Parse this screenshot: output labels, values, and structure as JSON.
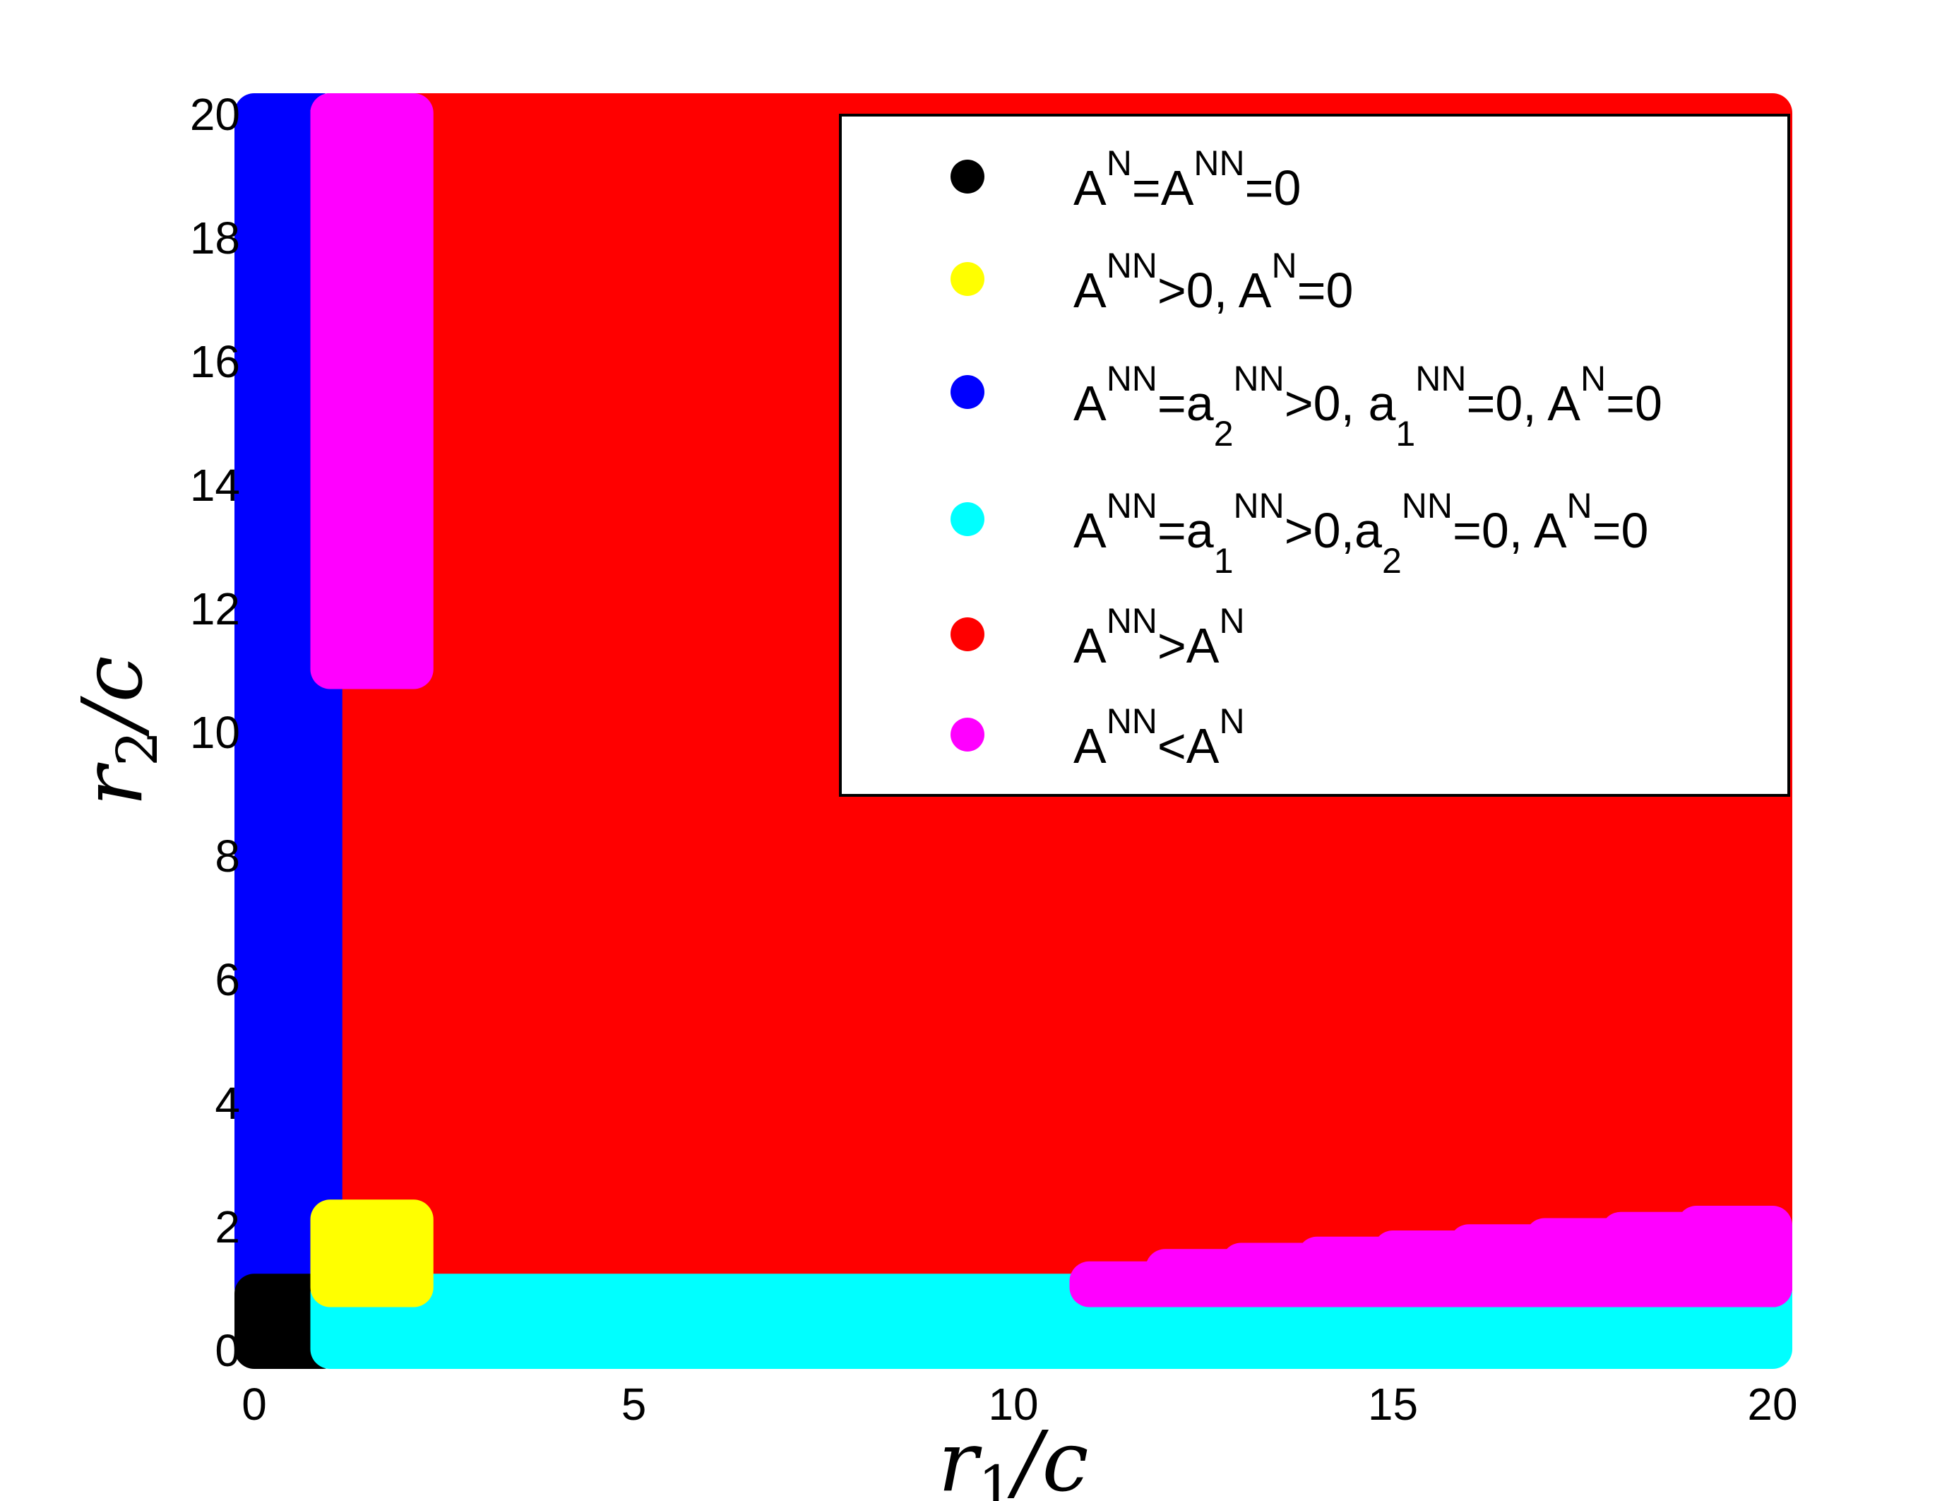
{
  "chart_data": {
    "type": "scatter",
    "xlabel": {
      "var": "r",
      "sub": "1",
      "tail": "/c"
    },
    "ylabel": {
      "var": "r",
      "sub": "2",
      "tail": "/c"
    },
    "xlim": [
      0,
      20
    ],
    "ylim": [
      0,
      20
    ],
    "xticks": [
      "0",
      "5",
      "10",
      "15",
      "20"
    ],
    "yticks": [
      "0",
      "2",
      "4",
      "6",
      "8",
      "10",
      "12",
      "14",
      "16",
      "18",
      "20"
    ],
    "grid": false,
    "legend_position": "top-right",
    "series": [
      {
        "key": "s1",
        "color": "#000000",
        "legend": [
          [
            "A"
          ],
          [
            "N",
            "sup"
          ],
          [
            "=A"
          ],
          [
            "NN",
            "sup"
          ],
          [
            "=0"
          ]
        ],
        "regions": [
          {
            "x": [
              0,
              0.9
            ],
            "y": [
              0,
              0.9
            ]
          }
        ]
      },
      {
        "key": "s2",
        "color": "#ffff00",
        "legend": [
          [
            "A"
          ],
          [
            "NN",
            "sup"
          ],
          [
            ">0, A"
          ],
          [
            "N",
            "sup"
          ],
          [
            "=0"
          ]
        ],
        "regions": [
          {
            "x": [
              1.0,
              2.1
            ],
            "y": [
              1.0,
              2.1
            ]
          }
        ]
      },
      {
        "key": "s3",
        "color": "#0000ff",
        "legend": [
          [
            "A"
          ],
          [
            "NN",
            "sup"
          ],
          [
            "=a"
          ],
          [
            "2",
            "sub"
          ],
          [
            "NN",
            "sup"
          ],
          [
            ">0, a"
          ],
          [
            "1",
            "sub"
          ],
          [
            "NN",
            "sup"
          ],
          [
            "=0, A"
          ],
          [
            "N",
            "sup"
          ],
          [
            "=0"
          ]
        ],
        "regions": [
          {
            "x": [
              0,
              0.9
            ],
            "y": [
              1.0,
              20
            ]
          }
        ]
      },
      {
        "key": "s4",
        "color": "#00ffff",
        "legend": [
          [
            "A"
          ],
          [
            "NN",
            "sup"
          ],
          [
            "=a"
          ],
          [
            "1",
            "sub"
          ],
          [
            "NN",
            "sup"
          ],
          [
            ">0,a"
          ],
          [
            "2",
            "sub"
          ],
          [
            "NN",
            "sup"
          ],
          [
            "=0, A"
          ],
          [
            "N",
            "sup"
          ],
          [
            "=0"
          ]
        ],
        "regions": [
          {
            "x": [
              1.0,
              20
            ],
            "y": [
              0,
              0.9
            ]
          }
        ]
      },
      {
        "key": "s5",
        "color": "#ff0000",
        "legend": [
          [
            " A"
          ],
          [
            "NN",
            "sup"
          ],
          [
            ">A"
          ],
          [
            "N",
            "sup"
          ]
        ],
        "regions": [
          {
            "x": [
              1.0,
              20
            ],
            "y": [
              1.0,
              20
            ]
          }
        ]
      },
      {
        "key": "s6",
        "color": "#ff00ff",
        "legend": [
          [
            "A"
          ],
          [
            "NN",
            "sup"
          ],
          [
            "<A"
          ],
          [
            "N",
            "sup"
          ]
        ],
        "regions": [
          {
            "x": [
              1.0,
              2.1
            ],
            "y": [
              11.0,
              20
            ]
          },
          {
            "x": [
              1.0,
              2.0
            ],
            "y": [
              12.0,
              20
            ]
          },
          {
            "x": [
              1.0,
              1.9
            ],
            "y": [
              13.0,
              20
            ]
          },
          {
            "x": [
              1.0,
              1.8
            ],
            "y": [
              14.0,
              20
            ]
          },
          {
            "x": [
              1.0,
              1.7
            ],
            "y": [
              15.0,
              20
            ]
          },
          {
            "x": [
              1.0,
              1.6
            ],
            "y": [
              16.0,
              20
            ]
          },
          {
            "x": [
              1.0,
              1.5
            ],
            "y": [
              17.0,
              20
            ]
          },
          {
            "x": [
              1.0,
              1.4
            ],
            "y": [
              18.0,
              20
            ]
          },
          {
            "x": [
              1.0,
              1.3
            ],
            "y": [
              19.0,
              20
            ]
          },
          {
            "x": [
              11.0,
              20
            ],
            "y": [
              1.0,
              1.1
            ]
          },
          {
            "x": [
              12.0,
              20
            ],
            "y": [
              1.0,
              1.3
            ]
          },
          {
            "x": [
              13.0,
              20
            ],
            "y": [
              1.0,
              1.4
            ]
          },
          {
            "x": [
              14.0,
              20
            ],
            "y": [
              1.0,
              1.5
            ]
          },
          {
            "x": [
              15.0,
              20
            ],
            "y": [
              1.0,
              1.6
            ]
          },
          {
            "x": [
              16.0,
              20
            ],
            "y": [
              1.0,
              1.7
            ]
          },
          {
            "x": [
              17.0,
              20
            ],
            "y": [
              1.0,
              1.8
            ]
          },
          {
            "x": [
              18.0,
              20
            ],
            "y": [
              1.0,
              1.9
            ]
          },
          {
            "x": [
              19.0,
              20
            ],
            "y": [
              1.0,
              2.0
            ]
          }
        ]
      }
    ]
  }
}
